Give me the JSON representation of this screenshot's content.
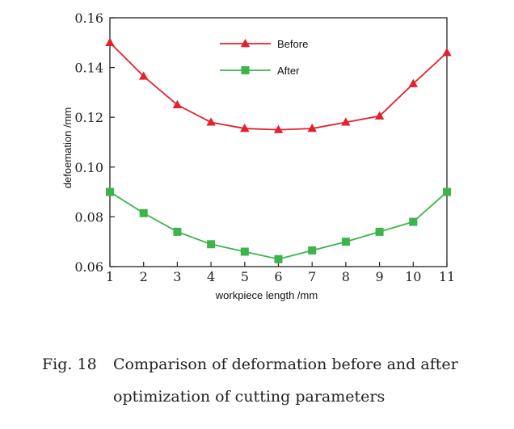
{
  "chart_data": {
    "type": "line",
    "x": [
      1,
      2,
      3,
      4,
      5,
      6,
      7,
      8,
      9,
      10,
      11
    ],
    "series": [
      {
        "name": "Before",
        "color": "#e3202c",
        "marker": "triangle",
        "values": [
          0.15,
          0.1365,
          0.125,
          0.118,
          0.1155,
          0.115,
          0.1155,
          0.118,
          0.1205,
          0.1335,
          0.146
        ]
      },
      {
        "name": "After",
        "color": "#3cb44b",
        "marker": "square",
        "values": [
          0.09,
          0.0815,
          0.074,
          0.069,
          0.066,
          0.063,
          0.0665,
          0.07,
          0.074,
          0.078,
          0.09
        ]
      }
    ],
    "xlabel": "workpiece length /mm",
    "ylabel": "defoemation /mm",
    "xlim": [
      1,
      11
    ],
    "ylim": [
      0.06,
      0.16
    ],
    "xticks": [
      "1",
      "2",
      "3",
      "4",
      "5",
      "6",
      "7",
      "8",
      "9",
      "10",
      "11"
    ],
    "yticks": [
      "0.06",
      "0.08",
      "0.10",
      "0.12",
      "0.14",
      "0.16"
    ],
    "legend_position": "top-center",
    "grid": false
  },
  "caption": {
    "number": "Fig. 18",
    "line1": "Comparison of deformation before and after",
    "line2": "optimization of cutting parameters"
  }
}
